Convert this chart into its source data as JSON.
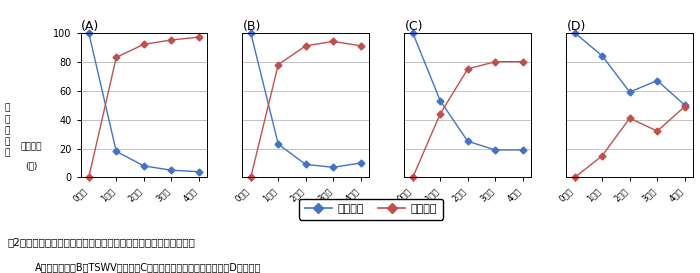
{
  "panels": [
    "(A)",
    "(B)",
    "(C)",
    "(D)"
  ],
  "x_ticks": [
    "0日目",
    "1日目",
    "2日目",
    "3日目",
    "4日目"
  ],
  "x_values": [
    0,
    1,
    2,
    3,
    4
  ],
  "blue_data": [
    [
      100,
      18,
      8,
      5,
      4
    ],
    [
      100,
      23,
      9,
      7,
      10
    ],
    [
      100,
      53,
      25,
      19,
      19
    ],
    [
      100,
      84,
      59,
      67,
      50
    ]
  ],
  "red_data": [
    [
      0,
      83,
      92,
      95,
      97
    ],
    [
      0,
      78,
      91,
      94,
      91
    ],
    [
      0,
      44,
      75,
      80,
      80
    ],
    [
      0,
      15,
      41,
      32,
      49
    ]
  ],
  "blue_color": "#4472C4",
  "red_color": "#C0504D",
  "ylim": [
    0,
    100
  ],
  "yticks": [
    0,
    20,
    40,
    60,
    80,
    100
  ],
  "ylabel_chars": [
    "ア",
    "ザ",
    "ミ",
    "ウ",
    "マ",
    "の分布率",
    "(％)"
  ],
  "legend_blue": "：中央部",
  "legend_red": "：外周部",
  "caption_line1": "図2各実験区におけるミカンキイロアザミウマ分布率の経日的変化",
  "caption_line2": "A；両処理区，B；TSWV接種区，C；ジャスモン酸メチル処理区，D；対照区",
  "background_color": "#ffffff",
  "grid_color": "#aaaaaa"
}
